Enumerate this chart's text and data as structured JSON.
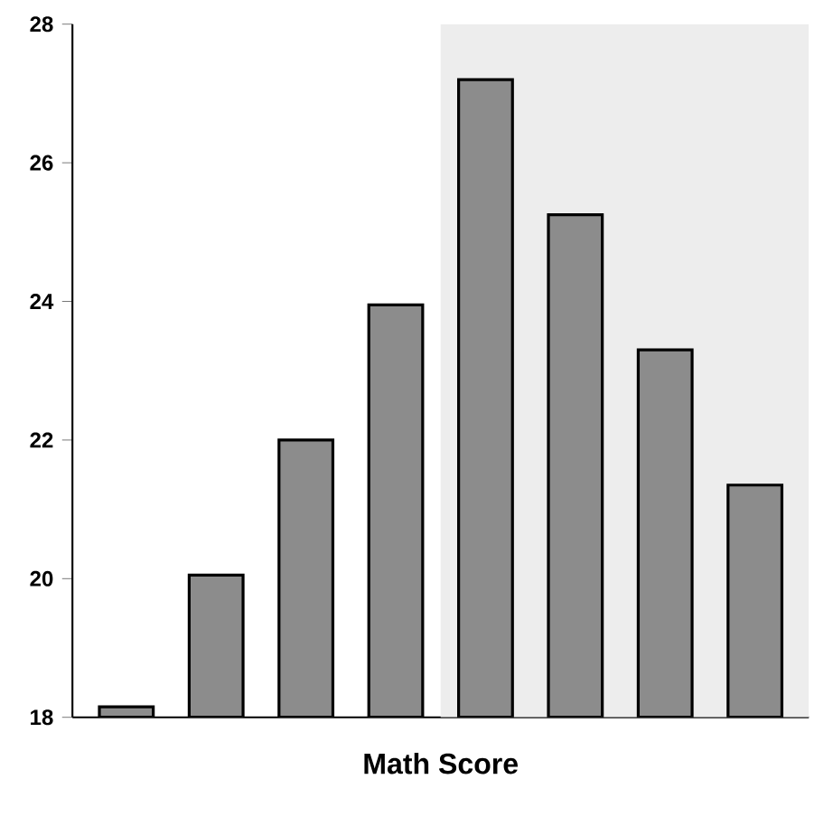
{
  "chart_data": {
    "type": "bar",
    "xlabel": "Math Score",
    "categories": [
      null,
      null,
      null,
      null,
      null,
      null,
      null,
      null
    ],
    "values": [
      18.15,
      20.05,
      22.0,
      23.95,
      27.2,
      25.25,
      23.3,
      21.35
    ],
    "color": "#8c8c8c",
    "ylim": [
      18,
      28
    ],
    "yticks": [
      18,
      20,
      22,
      24,
      26,
      28
    ]
  }
}
